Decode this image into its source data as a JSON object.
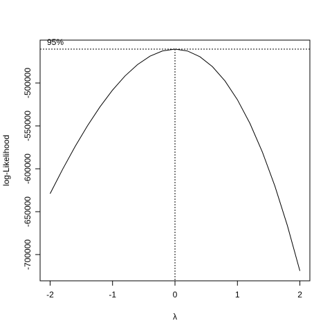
{
  "chart_data": {
    "type": "line",
    "xlabel": "λ",
    "ylabel": "log-Likelihood",
    "x": [
      -2,
      -1.8,
      -1.6,
      -1.4,
      -1.2,
      -1,
      -0.8,
      -0.6,
      -0.4,
      -0.2,
      0,
      0.2,
      0.4,
      0.6,
      0.8,
      1,
      1.2,
      1.4,
      1.6,
      1.8,
      2
    ],
    "values": [
      -629000,
      -600630,
      -574100,
      -549680,
      -527640,
      -508250,
      -491780,
      -478500,
      -468680,
      -462590,
      -460500,
      -462680,
      -469400,
      -480930,
      -497540,
      -519500,
      -547080,
      -580550,
      -620180,
      -666240,
      -719000
    ],
    "color": "#000000",
    "xlim": [
      -2.16,
      2.16
    ],
    "ylim": [
      -730600,
      -450000
    ],
    "xticks": [
      -2,
      -1,
      0,
      1,
      2
    ],
    "yticks": [
      -500000,
      -550000,
      -600000,
      -650000,
      -700000
    ],
    "reference_y": -460502,
    "reference_label": "95%",
    "vlines": [
      0
    ]
  }
}
